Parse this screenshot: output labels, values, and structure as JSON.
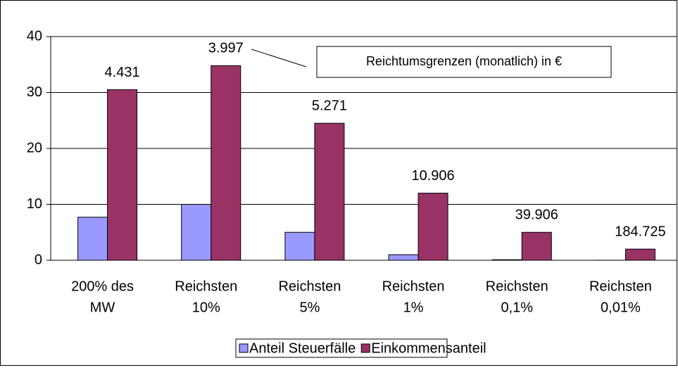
{
  "chart_data": {
    "type": "bar",
    "categories": [
      [
        "200% des",
        "MW"
      ],
      [
        "Reichsten",
        "10%"
      ],
      [
        "Reichsten",
        "5%"
      ],
      [
        "Reichsten",
        "1%"
      ],
      [
        "Reichsten",
        "0,1%"
      ],
      [
        "Reichsten",
        "0,01%"
      ]
    ],
    "series": [
      {
        "name": "Anteil Steuerfälle",
        "color": "#9999ff",
        "values": [
          7.7,
          10,
          5,
          1,
          0.1,
          0.01
        ]
      },
      {
        "name": "Einkommensanteil",
        "color": "#993366",
        "values": [
          30.5,
          34.8,
          24.5,
          12,
          5,
          2
        ]
      }
    ],
    "bar_annotations": [
      "4.431",
      "3.997",
      "5.271",
      "10.906",
      "39.906",
      "184.725"
    ],
    "annotation": "Reichtumsgrenzen (monatlich) in €",
    "ylim": [
      0,
      40
    ],
    "yticks": [
      0,
      10,
      20,
      30,
      40
    ],
    "grid": true
  }
}
